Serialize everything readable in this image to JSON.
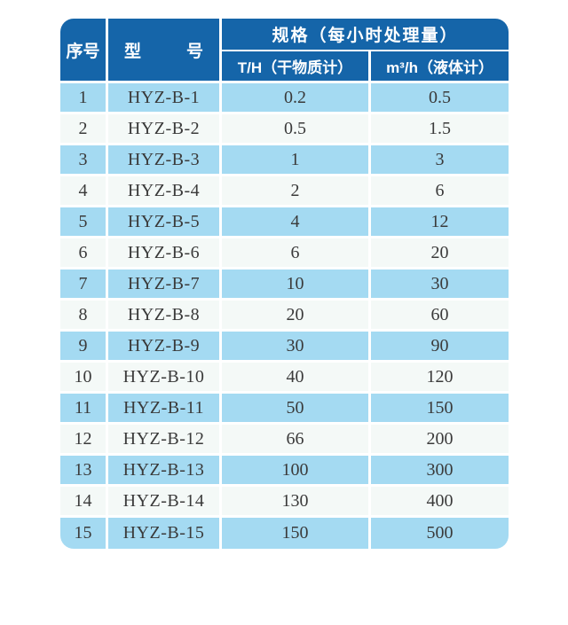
{
  "colors": {
    "header_bg": "#1565a9",
    "row_alt_bg": "#a4daf2",
    "row_bg": "#f4f9f7",
    "divider": "#ffffff",
    "data_text": "#3a3a3a",
    "header_text": "#ffffff"
  },
  "table": {
    "header": {
      "col_index": "序号",
      "col_model": "型号",
      "spec_group": "规格（每小时处理量）",
      "spec_col1": "T/H（干物质计）",
      "spec_col2": "m³/h（液体计）"
    },
    "rows": [
      {
        "index": "1",
        "model": "HYZ-B-1",
        "th": "0.2",
        "m3h": "0.5"
      },
      {
        "index": "2",
        "model": "HYZ-B-2",
        "th": "0.5",
        "m3h": "1.5"
      },
      {
        "index": "3",
        "model": "HYZ-B-3",
        "th": "1",
        "m3h": "3"
      },
      {
        "index": "4",
        "model": "HYZ-B-4",
        "th": "2",
        "m3h": "6"
      },
      {
        "index": "5",
        "model": "HYZ-B-5",
        "th": "4",
        "m3h": "12"
      },
      {
        "index": "6",
        "model": "HYZ-B-6",
        "th": "6",
        "m3h": "20"
      },
      {
        "index": "7",
        "model": "HYZ-B-7",
        "th": "10",
        "m3h": "30"
      },
      {
        "index": "8",
        "model": "HYZ-B-8",
        "th": "20",
        "m3h": "60"
      },
      {
        "index": "9",
        "model": "HYZ-B-9",
        "th": "30",
        "m3h": "90"
      },
      {
        "index": "10",
        "model": "HYZ-B-10",
        "th": "40",
        "m3h": "120"
      },
      {
        "index": "11",
        "model": "HYZ-B-11",
        "th": "50",
        "m3h": "150"
      },
      {
        "index": "12",
        "model": "HYZ-B-12",
        "th": "66",
        "m3h": "200"
      },
      {
        "index": "13",
        "model": "HYZ-B-13",
        "th": "100",
        "m3h": "300"
      },
      {
        "index": "14",
        "model": "HYZ-B-14",
        "th": "130",
        "m3h": "400"
      },
      {
        "index": "15",
        "model": "HYZ-B-15",
        "th": "150",
        "m3h": "500"
      }
    ]
  }
}
